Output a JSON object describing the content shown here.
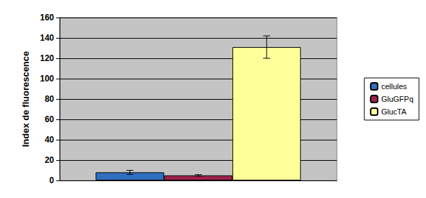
{
  "chart_data": {
    "type": "bar",
    "y_label": "Index de fluorescence",
    "categories": [
      null
    ],
    "series": [
      {
        "name": "cellules",
        "color": "#2f6fc0",
        "values": [
          8
        ],
        "errors": [
          2
        ]
      },
      {
        "name": "GluGFPq",
        "color": "#a0204a",
        "values": [
          5
        ],
        "errors": [
          0.7
        ]
      },
      {
        "name": "GlucTA",
        "color": "#ffff99",
        "values": [
          131
        ],
        "errors": [
          11
        ]
      }
    ],
    "ylim": [
      0,
      160
    ],
    "yticks": [
      0,
      20,
      40,
      60,
      80,
      100,
      120,
      140,
      160
    ],
    "grid": true,
    "legend": "right"
  }
}
